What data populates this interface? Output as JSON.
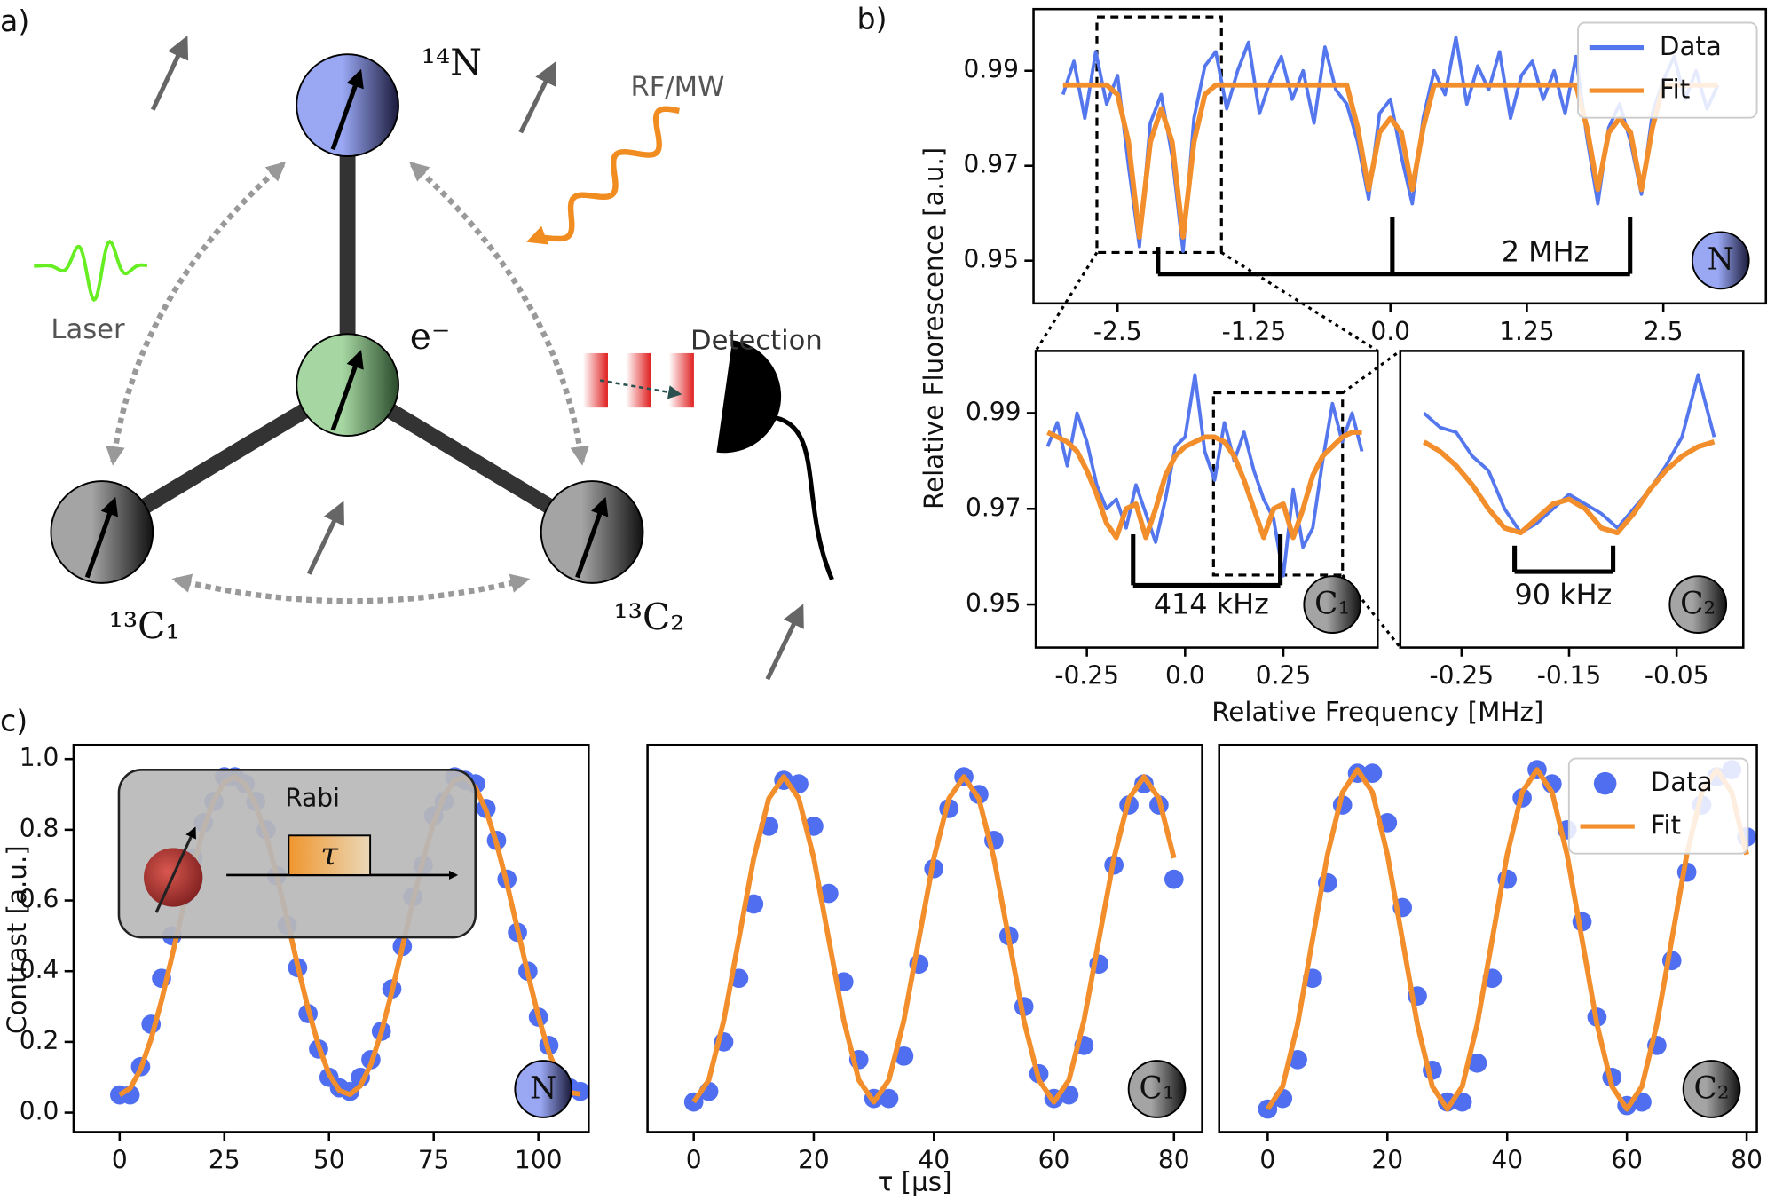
{
  "panel_labels": [
    "a)",
    "b)",
    "c)"
  ],
  "diagram": {
    "nitrogen": "¹⁴N",
    "electron": "e⁻",
    "carbon_1": "¹³C₁",
    "carbon_2": "¹³C₂",
    "drive": "RF/MW",
    "laser": "Laser",
    "detection": "Detection"
  },
  "panel_b": {
    "xlabel": "Relative Frequency [MHz]",
    "ylabel": "Relative Fluorescence [a.u.]"
  },
  "panel_c": {
    "xlabel": "τ [μs]",
    "ylabel": "Contrast [a.u.]",
    "inset_title": "Rabi",
    "inset_pulse": "τ"
  },
  "chart_data": [
    {
      "type": "line",
      "x": [
        -3,
        -2.9,
        -2.8,
        -2.7,
        -2.6,
        -2.5,
        -2.4,
        -2.3,
        -2.2,
        -2.1,
        -2,
        -1.9,
        -1.8,
        -1.7,
        -1.6,
        -1.5,
        -1.4,
        -1.3,
        -1.2,
        -1.1,
        -1,
        -0.9,
        -0.8,
        -0.7,
        -0.6,
        -0.5,
        -0.4,
        -0.3,
        -0.2,
        -0.1,
        0,
        0.1,
        0.2,
        0.3,
        0.4,
        0.5,
        0.6,
        0.7,
        0.8,
        0.9,
        1,
        1.1,
        1.2,
        1.3,
        1.4,
        1.5,
        1.6,
        1.7,
        1.8,
        1.9,
        2,
        2.1,
        2.2,
        2.3,
        2.4,
        2.5,
        2.6,
        2.7,
        2.8,
        2.9,
        3
      ],
      "series": [
        {
          "name": "Data",
          "color": "#5577ee",
          "style": "line",
          "values": [
            0.985,
            0.992,
            0.98,
            0.994,
            0.983,
            0.989,
            0.97,
            0.953,
            0.979,
            0.985,
            0.972,
            0.952,
            0.98,
            0.991,
            0.994,
            0.982,
            0.99,
            0.996,
            0.981,
            0.988,
            0.993,
            0.984,
            0.99,
            0.979,
            0.995,
            0.986,
            0.983,
            0.975,
            0.963,
            0.981,
            0.984,
            0.972,
            0.962,
            0.98,
            0.99,
            0.985,
            0.997,
            0.983,
            0.991,
            0.986,
            0.994,
            0.98,
            0.989,
            0.992,
            0.984,
            0.99,
            0.981,
            0.993,
            0.976,
            0.962,
            0.978,
            0.983,
            0.975,
            0.964,
            0.981,
            0.988,
            0.993,
            0.984,
            0.99,
            0.982,
            0.987
          ]
        },
        {
          "name": "Fit",
          "color": "#f28e2b",
          "style": "line",
          "values": [
            0.987,
            0.987,
            0.987,
            0.987,
            0.987,
            0.985,
            0.975,
            0.955,
            0.975,
            0.982,
            0.975,
            0.955,
            0.975,
            0.985,
            0.987,
            0.987,
            0.987,
            0.987,
            0.987,
            0.987,
            0.987,
            0.987,
            0.987,
            0.987,
            0.987,
            0.987,
            0.987,
            0.978,
            0.965,
            0.977,
            0.98,
            0.977,
            0.965,
            0.978,
            0.987,
            0.987,
            0.987,
            0.987,
            0.987,
            0.987,
            0.987,
            0.987,
            0.987,
            0.987,
            0.987,
            0.987,
            0.987,
            0.987,
            0.978,
            0.965,
            0.977,
            0.98,
            0.977,
            0.965,
            0.978,
            0.987,
            0.987,
            0.987,
            0.987,
            0.987,
            0.987
          ]
        }
      ],
      "xlim": [
        -3.27,
        3.44
      ],
      "ylim": [
        0.941,
        1.003
      ],
      "xticks": [
        -2.5,
        -1.25,
        {
          "value": 0,
          "label": "0.0"
        },
        1.25,
        2.5
      ],
      "yticks": [
        0.95,
        0.97,
        0.99
      ],
      "legend": "upper right",
      "annotation": "2 MHz",
      "badge": "N"
    },
    {
      "type": "line",
      "x": [
        -0.35,
        -0.325,
        -0.3,
        -0.275,
        -0.25,
        -0.225,
        -0.2,
        -0.175,
        -0.15,
        -0.125,
        -0.1,
        -0.075,
        -0.05,
        -0.025,
        0,
        0.025,
        0.05,
        0.075,
        0.1,
        0.125,
        0.15,
        0.175,
        0.2,
        0.225,
        0.25,
        0.275,
        0.3,
        0.325,
        0.35,
        0.375,
        0.4,
        0.425,
        0.45
      ],
      "series": [
        {
          "name": "Data",
          "color": "#5577ee",
          "style": "line",
          "values": [
            0.983,
            0.988,
            0.979,
            0.99,
            0.984,
            0.975,
            0.97,
            0.972,
            0.966,
            0.975,
            0.969,
            0.963,
            0.972,
            0.983,
            0.985,
            0.998,
            0.982,
            0.976,
            0.988,
            0.98,
            0.986,
            0.978,
            0.972,
            0.968,
            0.956,
            0.974,
            0.962,
            0.966,
            0.98,
            0.992,
            0.984,
            0.99,
            0.982
          ]
        },
        {
          "name": "Fit",
          "color": "#f28e2b",
          "style": "line",
          "values": [
            0.986,
            0.985,
            0.984,
            0.982,
            0.978,
            0.973,
            0.967,
            0.964,
            0.97,
            0.971,
            0.964,
            0.97,
            0.977,
            0.981,
            0.983,
            0.984,
            0.985,
            0.985,
            0.984,
            0.981,
            0.976,
            0.97,
            0.964,
            0.97,
            0.971,
            0.964,
            0.97,
            0.977,
            0.981,
            0.983,
            0.985,
            0.986,
            0.986
          ]
        }
      ],
      "xlim": [
        -0.38,
        0.49
      ],
      "ylim": [
        0.941,
        1.003
      ],
      "xticks": [
        -0.25,
        {
          "value": 0,
          "label": "0.0"
        },
        0.25
      ],
      "yticks": [
        0.95,
        0.97,
        0.99
      ],
      "annotation": "414 kHz",
      "badge": "C₁"
    },
    {
      "type": "line",
      "x": [
        -0.285,
        -0.27,
        -0.255,
        -0.24,
        -0.225,
        -0.21,
        -0.195,
        -0.18,
        -0.165,
        -0.15,
        -0.135,
        -0.12,
        -0.105,
        -0.09,
        -0.075,
        -0.06,
        -0.045,
        -0.03,
        -0.015
      ],
      "series": [
        {
          "name": "Data",
          "color": "#5577ee",
          "style": "line",
          "values": [
            0.99,
            0.987,
            0.986,
            0.981,
            0.978,
            0.97,
            0.965,
            0.967,
            0.97,
            0.973,
            0.971,
            0.969,
            0.966,
            0.97,
            0.974,
            0.979,
            0.985,
            0.998,
            0.985
          ]
        },
        {
          "name": "Fit",
          "color": "#f28e2b",
          "style": "line",
          "values": [
            0.984,
            0.982,
            0.979,
            0.975,
            0.97,
            0.966,
            0.965,
            0.968,
            0.971,
            0.972,
            0.97,
            0.966,
            0.965,
            0.969,
            0.974,
            0.978,
            0.981,
            0.983,
            0.984
          ]
        }
      ],
      "xlim": [
        -0.307,
        0.012
      ],
      "ylim": [
        0.941,
        1.003
      ],
      "xticks": [
        -0.25,
        -0.15,
        -0.05
      ],
      "annotation": "90 kHz",
      "badge": "C₂"
    },
    {
      "type": "scatter",
      "x": [
        0,
        2.5,
        5,
        7.5,
        10,
        12.5,
        15,
        17.5,
        20,
        22.5,
        25,
        27.5,
        30,
        32.5,
        35,
        37.5,
        40,
        42.5,
        45,
        47.5,
        50,
        52.5,
        55,
        57.5,
        60,
        62.5,
        65,
        67.5,
        70,
        72.5,
        75,
        77.5,
        80,
        82.5,
        85,
        87.5,
        90,
        92.5,
        95,
        97.5,
        100,
        102.5,
        105,
        107.5,
        110
      ],
      "series": [
        {
          "name": "Data",
          "color": "#4f6ff0",
          "style": "dots",
          "values": [
            0.05,
            0.05,
            0.13,
            0.25,
            0.38,
            0.5,
            0.61,
            0.72,
            0.82,
            0.88,
            0.95,
            0.95,
            0.93,
            0.88,
            0.8,
            0.67,
            0.53,
            0.41,
            0.28,
            0.18,
            0.1,
            0.07,
            0.06,
            0.1,
            0.15,
            0.23,
            0.35,
            0.47,
            0.61,
            0.7,
            0.84,
            0.88,
            0.95,
            0.94,
            0.93,
            0.86,
            0.77,
            0.66,
            0.51,
            0.4,
            0.27,
            0.19,
            0.1,
            0.07,
            0.06
          ]
        },
        {
          "name": "Fit",
          "color": "#f28e2b",
          "style": "line",
          "values": [
            0.05,
            0.069,
            0.123,
            0.208,
            0.317,
            0.442,
            0.571,
            0.694,
            0.802,
            0.884,
            0.935,
            0.95,
            0.928,
            0.87,
            0.783,
            0.671,
            0.545,
            0.416,
            0.294,
            0.189,
            0.109,
            0.062,
            0.051,
            0.076,
            0.137,
            0.228,
            0.341,
            0.467,
            0.596,
            0.717,
            0.82,
            0.897,
            0.941,
            0.948,
            0.919,
            0.855,
            0.762,
            0.647,
            0.52,
            0.392,
            0.272,
            0.171,
            0.098,
            0.057,
            0.052
          ]
        }
      ],
      "xlim": [
        -11,
        112
      ],
      "ylim": [
        -0.055,
        1.04
      ],
      "xticks": [
        0,
        25,
        50,
        75,
        100
      ],
      "yticks": [
        {
          "value": 0,
          "label": "0.0"
        },
        0.2,
        0.4,
        0.6,
        0.8,
        {
          "value": 1,
          "label": "1.0"
        }
      ],
      "badge": "N"
    },
    {
      "type": "scatter",
      "x": [
        0,
        2.5,
        5,
        7.5,
        10,
        12.5,
        15,
        17.5,
        20,
        22.5,
        25,
        27.5,
        30,
        32.5,
        35,
        37.5,
        40,
        42.5,
        45,
        47.5,
        50,
        52.5,
        55,
        57.5,
        60,
        62.5,
        65,
        67.5,
        70,
        72.5,
        75,
        77.5,
        80
      ],
      "series": [
        {
          "name": "Data",
          "color": "#4f6ff0",
          "style": "dots",
          "values": [
            0.03,
            0.06,
            0.2,
            0.38,
            0.59,
            0.81,
            0.94,
            0.93,
            0.81,
            0.62,
            0.37,
            0.15,
            0.04,
            0.04,
            0.16,
            0.42,
            0.69,
            0.86,
            0.95,
            0.9,
            0.77,
            0.5,
            0.3,
            0.11,
            0.04,
            0.05,
            0.19,
            0.42,
            0.7,
            0.87,
            0.93,
            0.87,
            0.66
          ]
        },
        {
          "name": "Fit",
          "color": "#f28e2b",
          "style": "line",
          "values": [
            0.03,
            0.092,
            0.26,
            0.49,
            0.72,
            0.888,
            0.95,
            0.888,
            0.72,
            0.49,
            0.26,
            0.092,
            0.03,
            0.092,
            0.26,
            0.49,
            0.72,
            0.888,
            0.95,
            0.888,
            0.72,
            0.49,
            0.26,
            0.092,
            0.03,
            0.092,
            0.26,
            0.49,
            0.72,
            0.888,
            0.95,
            0.888,
            0.72
          ]
        }
      ],
      "xlim": [
        -7.7,
        84.7
      ],
      "ylim": [
        -0.055,
        1.04
      ],
      "xticks": [
        0,
        20,
        40,
        60,
        80
      ],
      "badge": "C₁"
    },
    {
      "type": "scatter",
      "x": [
        0,
        2.5,
        5,
        7.5,
        10,
        12.5,
        15,
        17.5,
        20,
        22.5,
        25,
        27.5,
        30,
        32.5,
        35,
        37.5,
        40,
        42.5,
        45,
        47.5,
        50,
        52.5,
        55,
        57.5,
        60,
        62.5,
        65,
        67.5,
        70,
        72.5,
        75,
        77.5,
        80
      ],
      "series": [
        {
          "name": "Data",
          "color": "#4f6ff0",
          "style": "dots",
          "values": [
            0.01,
            0.04,
            0.15,
            0.38,
            0.65,
            0.87,
            0.96,
            0.96,
            0.82,
            0.58,
            0.33,
            0.12,
            0.03,
            0.03,
            0.14,
            0.38,
            0.66,
            0.89,
            0.97,
            0.93,
            0.8,
            0.54,
            0.27,
            0.1,
            0.02,
            0.03,
            0.19,
            0.43,
            0.68,
            0.87,
            0.95,
            0.97,
            0.78
          ]
        },
        {
          "name": "Fit",
          "color": "#f28e2b",
          "style": "line",
          "values": [
            0.01,
            0.074,
            0.25,
            0.49,
            0.73,
            0.906,
            0.97,
            0.906,
            0.73,
            0.49,
            0.25,
            0.074,
            0.01,
            0.074,
            0.25,
            0.49,
            0.73,
            0.906,
            0.97,
            0.906,
            0.73,
            0.49,
            0.25,
            0.074,
            0.01,
            0.074,
            0.25,
            0.49,
            0.73,
            0.906,
            0.97,
            0.906,
            0.73
          ]
        }
      ],
      "xlim": [
        -8.1,
        81.7
      ],
      "ylim": [
        -0.055,
        1.04
      ],
      "xticks": [
        0,
        20,
        40,
        60,
        80
      ],
      "legend": "upper right",
      "badge": "C₂"
    }
  ]
}
